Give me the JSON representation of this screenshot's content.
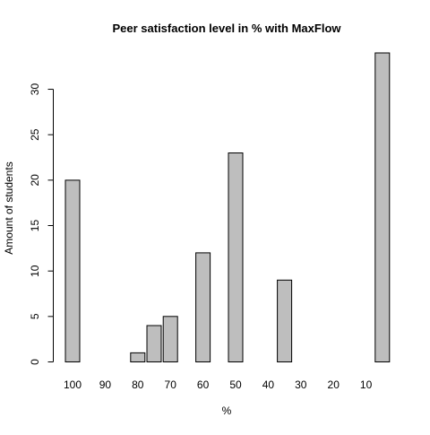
{
  "chart_data": {
    "type": "bar",
    "title": "Peer satisfaction level in % with MaxFlow",
    "xlabel": "%",
    "ylabel": "Amount of students",
    "categories": [
      "100",
      "",
      "90",
      "",
      "80",
      "",
      "70",
      "",
      "60",
      "",
      "50",
      "",
      "40",
      "",
      "30",
      "",
      "20",
      "",
      "10",
      ""
    ],
    "values": [
      20,
      0,
      0,
      0,
      1,
      4,
      5,
      0,
      12,
      0,
      23,
      0,
      0,
      9,
      0,
      0,
      0,
      0,
      0,
      34
    ],
    "x_tick_labels": [
      "100",
      "90",
      "80",
      "70",
      "60",
      "50",
      "40",
      "30",
      "20",
      "10"
    ],
    "y_ticks": [
      0,
      5,
      10,
      15,
      20,
      25,
      30
    ],
    "ylim": [
      0,
      34
    ],
    "bar_color": "#bebebe",
    "grid": false,
    "legend": "none"
  }
}
